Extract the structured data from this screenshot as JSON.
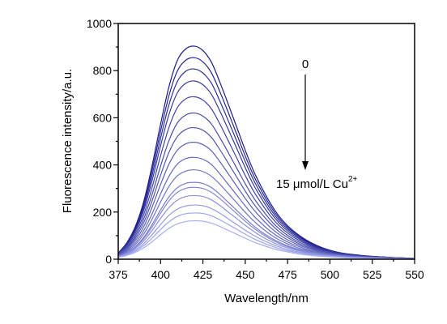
{
  "chart_data": {
    "type": "line",
    "xlabel": "Wavelength/nm",
    "ylabel": "Fluorescence intensity/a.u.",
    "xlim": [
      375,
      550
    ],
    "ylim": [
      0,
      1000
    ],
    "x_ticks": [
      375,
      400,
      425,
      450,
      475,
      500,
      525,
      550
    ],
    "y_ticks": [
      0,
      200,
      400,
      600,
      800,
      1000
    ],
    "x_tick_labels": [
      "375",
      "400",
      "425",
      "450",
      "475",
      "500",
      "525",
      "550"
    ],
    "y_tick_labels": [
      "0",
      "200",
      "400",
      "600",
      "800",
      "1000"
    ],
    "grid": false,
    "annotations": {
      "start_label": "0",
      "end_label_main": "15 μmol/L Cu",
      "end_label_sup": "2+"
    },
    "colors": {
      "dark": "#1a1a8c",
      "light": "#a6aef0",
      "axis": "#000000"
    },
    "x": [
      375,
      380,
      385,
      390,
      395,
      400,
      405,
      410,
      415,
      420,
      425,
      430,
      435,
      440,
      445,
      450,
      455,
      460,
      465,
      470,
      475,
      480,
      485,
      490,
      495,
      500,
      505,
      510,
      515,
      520,
      525,
      530,
      535,
      540,
      545,
      550
    ],
    "series": [
      {
        "values": [
          26,
          69,
          137,
          243,
          397,
          573,
          733,
          845,
          893,
          904,
          885,
          836,
          751,
          657,
          560,
          462,
          373,
          300,
          235,
          182,
          142,
          111,
          86,
          66,
          50,
          38,
          29,
          23,
          19,
          15,
          12,
          10,
          8,
          6,
          5,
          3
        ]
      },
      {
        "values": [
          25,
          66,
          131,
          231,
          377,
          543,
          695,
          800,
          845,
          855,
          837,
          791,
          711,
          622,
          530,
          438,
          354,
          285,
          223,
          173,
          135,
          106,
          82,
          63,
          48,
          37,
          28,
          22,
          18,
          14,
          12,
          10,
          8,
          6,
          5,
          3
        ]
      },
      {
        "values": [
          24,
          63,
          124,
          219,
          356,
          513,
          656,
          755,
          798,
          807,
          790,
          747,
          671,
          587,
          501,
          414,
          335,
          269,
          211,
          164,
          128,
          100,
          78,
          60,
          46,
          35,
          27,
          21,
          17,
          14,
          11,
          9,
          7,
          6,
          5,
          3
        ]
      },
      {
        "values": [
          23,
          60,
          117,
          206,
          334,
          481,
          615,
          707,
          747,
          756,
          740,
          700,
          629,
          550,
          470,
          388,
          314,
          253,
          198,
          154,
          120,
          94,
          73,
          56,
          43,
          33,
          25,
          20,
          16,
          13,
          11,
          9,
          7,
          6,
          4,
          3
        ]
      },
      {
        "values": [
          21,
          55,
          107,
          188,
          305,
          439,
          560,
          644,
          681,
          689,
          675,
          638,
          574,
          502,
          429,
          355,
          288,
          232,
          182,
          142,
          111,
          87,
          68,
          52,
          40,
          31,
          24,
          19,
          15,
          12,
          10,
          8,
          7,
          5,
          4,
          3
        ]
      },
      {
        "values": [
          19,
          50,
          97,
          170,
          275,
          395,
          504,
          579,
          612,
          620,
          607,
          574,
          516,
          452,
          386,
          320,
          260,
          210,
          165,
          129,
          101,
          79,
          62,
          48,
          37,
          28,
          22,
          17,
          14,
          11,
          9,
          8,
          6,
          5,
          4,
          3
        ]
      },
      {
        "values": [
          18,
          46,
          88,
          154,
          248,
          356,
          454,
          521,
          551,
          558,
          547,
          517,
          465,
          407,
          348,
          289,
          235,
          190,
          150,
          117,
          92,
          72,
          56,
          44,
          34,
          26,
          20,
          16,
          13,
          11,
          9,
          7,
          6,
          5,
          4,
          3
        ]
      },
      {
        "values": [
          16,
          41,
          79,
          137,
          221,
          317,
          404,
          463,
          490,
          496,
          486,
          460,
          414,
          362,
          310,
          258,
          210,
          170,
          134,
          105,
          82,
          65,
          51,
          40,
          31,
          24,
          19,
          15,
          12,
          10,
          8,
          7,
          5,
          4,
          3,
          3
        ]
      },
      {
        "values": [
          14,
          36,
          69,
          120,
          193,
          277,
          352,
          404,
          427,
          432,
          424,
          402,
          362,
          317,
          272,
          226,
          184,
          149,
          118,
          93,
          73,
          58,
          45,
          35,
          28,
          22,
          17,
          14,
          11,
          9,
          7,
          6,
          5,
          4,
          3,
          2
        ]
      },
      {
        "values": [
          13,
          32,
          61,
          106,
          170,
          243,
          309,
          354,
          374,
          379,
          372,
          352,
          318,
          279,
          239,
          199,
          162,
          131,
          104,
          82,
          65,
          51,
          40,
          32,
          25,
          19,
          15,
          12,
          10,
          8,
          7,
          6,
          5,
          4,
          3,
          2
        ]
      },
      {
        "values": [
          11,
          28,
          53,
          92,
          147,
          209,
          265,
          304,
          322,
          326,
          321,
          304,
          275,
          241,
          207,
          173,
          141,
          114,
          91,
          72,
          57,
          45,
          36,
          28,
          22,
          17,
          14,
          11,
          9,
          7,
          6,
          5,
          4,
          3,
          3,
          2
        ]
      },
      {
        "values": [
          11,
          26,
          50,
          86,
          137,
          195,
          248,
          284,
          301,
          305,
          300,
          284,
          257,
          225,
          193,
          161,
          132,
          107,
          85,
          67,
          53,
          42,
          33,
          26,
          21,
          16,
          13,
          10,
          8,
          7,
          6,
          5,
          4,
          3,
          2,
          2
        ]
      },
      {
        "values": [
          10,
          24,
          45,
          77,
          122,
          173,
          219,
          251,
          266,
          270,
          266,
          252,
          228,
          200,
          172,
          144,
          118,
          95,
          76,
          60,
          48,
          38,
          30,
          24,
          19,
          15,
          12,
          9,
          8,
          6,
          5,
          4,
          3,
          3,
          2,
          2
        ]
      },
      {
        "values": [
          9,
          21,
          39,
          66,
          104,
          147,
          186,
          213,
          226,
          230,
          227,
          215,
          195,
          171,
          147,
          123,
          101,
          82,
          66,
          52,
          41,
          33,
          26,
          21,
          16,
          13,
          10,
          8,
          7,
          5,
          4,
          4,
          3,
          2,
          2,
          1
        ]
      },
      {
        "values": [
          8,
          19,
          34,
          57,
          89,
          126,
          159,
          182,
          193,
          196,
          194,
          184,
          167,
          147,
          127,
          106,
          87,
          71,
          57,
          45,
          36,
          29,
          23,
          18,
          14,
          11,
          9,
          7,
          6,
          5,
          4,
          3,
          3,
          2,
          2,
          1
        ]
      },
      {
        "values": [
          7,
          16,
          29,
          48,
          74,
          104,
          131,
          150,
          160,
          163,
          161,
          153,
          139,
          122,
          106,
          89,
          73,
          60,
          48,
          38,
          31,
          24,
          19,
          15,
          12,
          10,
          8,
          6,
          5,
          4,
          3,
          3,
          2,
          2,
          1,
          1
        ]
      }
    ]
  }
}
